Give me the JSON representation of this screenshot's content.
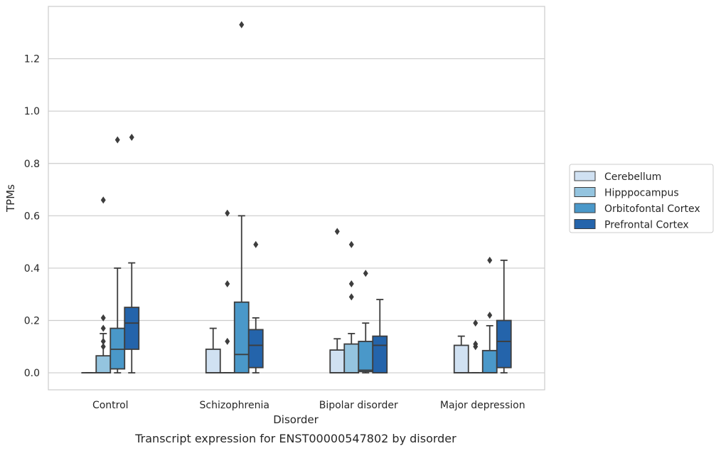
{
  "chart_data": {
    "type": "box",
    "caption": "Transcript expression for ENST00000547802 by disorder",
    "xlabel": "Disorder",
    "ylabel": "TPMs",
    "ylim": [
      -0.065,
      1.4
    ],
    "yticks": [
      "0.0",
      "0.2",
      "0.4",
      "0.6",
      "0.8",
      "1.0",
      "1.2"
    ],
    "yticks_values": [
      0.0,
      0.2,
      0.4,
      0.6,
      0.8,
      1.0,
      1.2
    ],
    "grid": "horizontal",
    "legend_position": "right",
    "categories": [
      "Control",
      "Schizophrenia",
      "Bipolar disorder",
      "Major depression"
    ],
    "series": [
      {
        "name": "Cerebellum",
        "color": "#d0e1f2",
        "boxes": [
          {
            "min": 0,
            "q1": 0,
            "median": 0,
            "q3": 0,
            "max": 0,
            "outliers": []
          },
          {
            "min": 0,
            "q1": 0,
            "median": 0,
            "q3": 0.09,
            "max": 0.17,
            "outliers": []
          },
          {
            "min": 0,
            "q1": 0,
            "median": 0,
            "q3": 0.087,
            "max": 0.13,
            "outliers": [
              0.54
            ]
          },
          {
            "min": 0,
            "q1": 0,
            "median": 0,
            "q3": 0.105,
            "max": 0.14,
            "outliers": []
          }
        ]
      },
      {
        "name": "Hipppocampus",
        "color": "#94c4df",
        "boxes": [
          {
            "min": 0,
            "q1": 0,
            "median": 0,
            "q3": 0.065,
            "max": 0.15,
            "outliers": [
              0.21,
              0.12,
              0.1,
              0.17,
              0.66
            ]
          },
          {
            "min": 0,
            "q1": 0,
            "median": 0,
            "q3": 0,
            "max": 0,
            "outliers": [
              0.12,
              0.34,
              0.61
            ]
          },
          {
            "min": 0,
            "q1": 0,
            "median": 0,
            "q3": 0.11,
            "max": 0.15,
            "outliers": [
              0.29,
              0.34,
              0.49
            ]
          },
          {
            "min": 0,
            "q1": 0,
            "median": 0,
            "q3": 0,
            "max": 0,
            "outliers": [
              0.1,
              0.11,
              0.19
            ]
          }
        ]
      },
      {
        "name": "Orbitofontal Cortex",
        "color": "#4a98c9",
        "boxes": [
          {
            "min": 0,
            "q1": 0.015,
            "median": 0.09,
            "q3": 0.17,
            "max": 0.4,
            "outliers": [
              0.89
            ]
          },
          {
            "min": 0,
            "q1": 0,
            "median": 0.07,
            "q3": 0.27,
            "max": 0.6,
            "outliers": [
              1.33
            ]
          },
          {
            "min": 0,
            "q1": 0.005,
            "median": 0.01,
            "q3": 0.12,
            "max": 0.19,
            "outliers": [
              0.38
            ]
          },
          {
            "min": 0,
            "q1": 0,
            "median": 0,
            "q3": 0.085,
            "max": 0.18,
            "outliers": [
              0.22,
              0.43
            ]
          }
        ]
      },
      {
        "name": "Prefrontal Cortex",
        "color": "#2464ab",
        "boxes": [
          {
            "min": 0,
            "q1": 0.09,
            "median": 0.19,
            "q3": 0.25,
            "max": 0.42,
            "outliers": [
              0.9
            ]
          },
          {
            "min": 0,
            "q1": 0.02,
            "median": 0.105,
            "q3": 0.165,
            "max": 0.21,
            "outliers": [
              0.49
            ]
          },
          {
            "min": 0,
            "q1": 0,
            "median": 0.105,
            "q3": 0.14,
            "max": 0.28,
            "outliers": []
          },
          {
            "min": 0,
            "q1": 0.02,
            "median": 0.12,
            "q3": 0.2,
            "max": 0.43,
            "outliers": []
          }
        ]
      }
    ]
  }
}
